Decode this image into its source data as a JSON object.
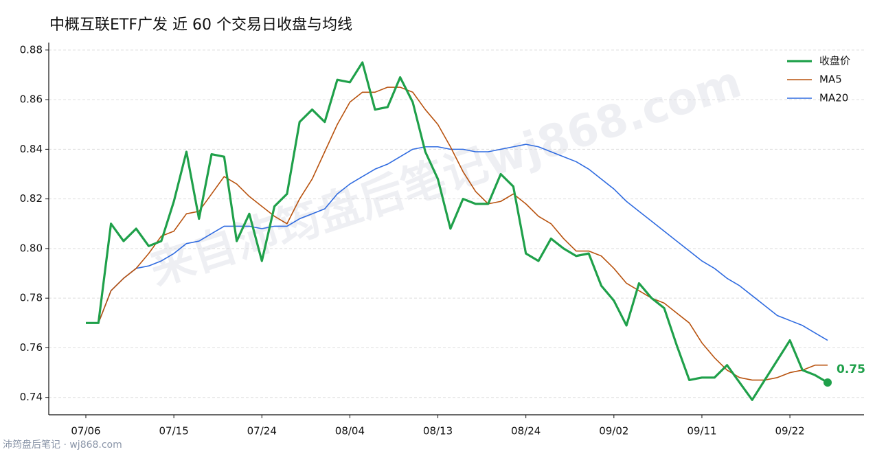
{
  "chart_data": {
    "type": "line",
    "title": "中概互联ETF广发 近 60 个交易日收盘与均线",
    "watermark": "来自沛筠盘后笔记wj868.com",
    "footer": "沛筠盘后笔记 · wj868.com",
    "categories": [
      "07/06",
      null,
      null,
      null,
      null,
      null,
      null,
      "07/15",
      null,
      null,
      null,
      null,
      null,
      null,
      "07/24",
      null,
      null,
      null,
      null,
      null,
      null,
      "08/04",
      null,
      null,
      null,
      null,
      null,
      null,
      "08/13",
      null,
      null,
      null,
      null,
      null,
      null,
      "08/24",
      null,
      null,
      null,
      null,
      null,
      null,
      "09/02",
      null,
      null,
      null,
      null,
      null,
      null,
      "09/11",
      null,
      null,
      null,
      null,
      null,
      null,
      "09/22",
      null,
      null,
      null
    ],
    "series": [
      {
        "name": "收盘价",
        "color": "#1fa04a",
        "values": [
          0.77,
          0.77,
          0.81,
          0.803,
          0.808,
          0.801,
          0.803,
          0.819,
          0.839,
          0.812,
          0.838,
          0.837,
          0.803,
          0.814,
          0.795,
          0.817,
          0.822,
          0.851,
          0.856,
          0.851,
          0.868,
          0.867,
          0.875,
          0.856,
          0.857,
          0.869,
          0.859,
          0.839,
          0.828,
          0.808,
          0.82,
          0.818,
          0.818,
          0.83,
          0.825,
          0.798,
          0.795,
          0.804,
          0.8,
          0.797,
          0.798,
          0.785,
          0.779,
          0.769,
          0.786,
          0.78,
          0.776,
          0.761,
          0.747,
          0.748,
          0.748,
          0.753,
          0.746,
          0.739,
          0.747,
          0.755,
          0.763,
          0.751,
          0.749,
          0.746
        ],
        "value_labels": [
          null,
          null,
          null,
          null,
          null,
          null,
          null,
          null,
          null,
          null,
          null,
          null,
          null,
          null,
          null,
          null,
          null,
          null,
          null,
          null,
          null,
          null,
          null,
          null,
          null,
          null,
          null,
          null,
          null,
          null,
          null,
          null,
          null,
          null,
          null,
          null,
          null,
          null,
          null,
          null,
          null,
          null,
          null,
          null,
          null,
          null,
          null,
          null,
          null,
          null,
          null,
          null,
          null,
          null,
          null,
          null,
          null,
          null,
          null,
          "0.75"
        ]
      },
      {
        "name": "MA5",
        "color": "#b8520e",
        "values": [
          0.77,
          0.77,
          0.783,
          0.788,
          0.792,
          0.798,
          0.805,
          0.807,
          0.814,
          0.815,
          0.822,
          0.829,
          0.826,
          0.821,
          0.817,
          0.813,
          0.81,
          0.82,
          0.828,
          0.839,
          0.85,
          0.859,
          0.863,
          0.863,
          0.865,
          0.865,
          0.863,
          0.856,
          0.85,
          0.841,
          0.831,
          0.823,
          0.818,
          0.819,
          0.822,
          0.818,
          0.813,
          0.81,
          0.804,
          0.799,
          0.799,
          0.797,
          0.792,
          0.786,
          0.783,
          0.78,
          0.778,
          0.774,
          0.77,
          0.762,
          0.756,
          0.751,
          0.748,
          0.747,
          0.747,
          0.748,
          0.75,
          0.751,
          0.753,
          0.753
        ]
      },
      {
        "name": "MA20",
        "color": "#2f6be0",
        "values": [
          0.77,
          0.77,
          0.783,
          0.788,
          0.792,
          0.793,
          0.795,
          0.798,
          0.802,
          0.803,
          0.806,
          0.809,
          0.809,
          0.809,
          0.808,
          0.809,
          0.809,
          0.812,
          0.814,
          0.816,
          0.822,
          0.826,
          0.829,
          0.832,
          0.834,
          0.837,
          0.84,
          0.841,
          0.841,
          0.84,
          0.84,
          0.839,
          0.839,
          0.84,
          0.841,
          0.842,
          0.841,
          0.839,
          0.837,
          0.835,
          0.832,
          0.828,
          0.824,
          0.819,
          0.815,
          0.811,
          0.807,
          0.803,
          0.799,
          0.795,
          0.792,
          0.788,
          0.785,
          0.781,
          0.777,
          0.773,
          0.771,
          0.769,
          0.766,
          0.763
        ]
      }
    ],
    "ylim": [
      0.733,
      0.883
    ],
    "yticks": [
      0.74,
      0.76,
      0.78,
      {
        "value": 0.8,
        "label": "0.80"
      },
      0.82,
      0.84,
      0.86,
      0.88
    ],
    "grid": true,
    "legend": "upper right"
  }
}
